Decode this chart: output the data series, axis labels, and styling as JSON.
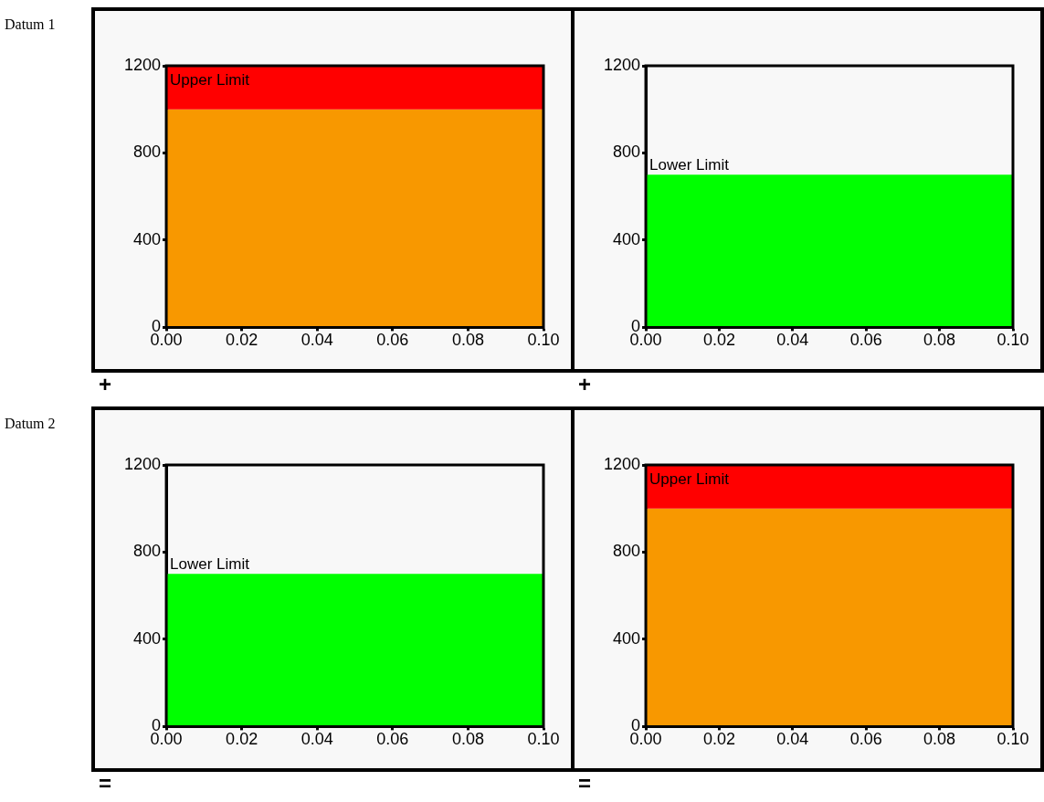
{
  "chart_data": [
    {
      "type": "area",
      "bands": [
        {
          "axis": "y",
          "from": 0,
          "to": 1000,
          "color": "#f89800"
        },
        {
          "axis": "y",
          "from": 1000,
          "to": 1200,
          "label": "Upper Limit",
          "color": "#ff0000"
        }
      ],
      "xlim": [
        0,
        0.1
      ],
      "ylim": [
        0,
        1200
      ],
      "xticks": [
        {
          "value": 0,
          "label": "0.00"
        },
        {
          "value": 0.02,
          "label": "0.02"
        },
        {
          "value": 0.04,
          "label": "0.04"
        },
        {
          "value": 0.06,
          "label": "0.06"
        },
        {
          "value": 0.08,
          "label": "0.08"
        },
        {
          "value": 0.1,
          "label": "0.10"
        }
      ],
      "yticks": [
        0,
        400,
        800,
        1200
      ],
      "annotations": [
        "Datum 1",
        "+"
      ]
    },
    {
      "type": "area",
      "bands": [
        {
          "axis": "y",
          "from": 0,
          "to": 700,
          "color": "#00ff00"
        }
      ],
      "xlim": [
        0,
        0.1
      ],
      "ylim": [
        0,
        1200
      ],
      "xticks": [
        {
          "value": 0,
          "label": "0.00"
        },
        {
          "value": 0.02,
          "label": "0.02"
        },
        {
          "value": 0.04,
          "label": "0.04"
        },
        {
          "value": 0.06,
          "label": "0.06"
        },
        {
          "value": 0.08,
          "label": "0.08"
        },
        {
          "value": 0.1,
          "label": "0.10"
        }
      ],
      "yticks": [
        0,
        400,
        800,
        1200
      ],
      "annotations": [
        {
          "text": "Lower Limit",
          "x": 0,
          "y": 700
        },
        "+"
      ]
    },
    {
      "type": "area",
      "bands": [
        {
          "axis": "y",
          "from": 0,
          "to": 700,
          "color": "#00ff00"
        }
      ],
      "xlim": [
        0,
        0.1
      ],
      "ylim": [
        0,
        1200
      ],
      "xticks": [
        {
          "value": 0,
          "label": "0.00"
        },
        {
          "value": 0.02,
          "label": "0.02"
        },
        {
          "value": 0.04,
          "label": "0.04"
        },
        {
          "value": 0.06,
          "label": "0.06"
        },
        {
          "value": 0.08,
          "label": "0.08"
        },
        {
          "value": 0.1,
          "label": "0.10"
        }
      ],
      "yticks": [
        0,
        400,
        800,
        1200
      ],
      "annotations": [
        {
          "text": "Lower Limit",
          "x": 0,
          "y": 700
        },
        "Datum 2",
        "="
      ]
    },
    {
      "type": "area",
      "bands": [
        {
          "axis": "y",
          "from": 0,
          "to": 1000,
          "color": "#f89800"
        },
        {
          "axis": "y",
          "from": 1000,
          "to": 1200,
          "label": "Upper Limit",
          "color": "#ff0000"
        }
      ],
      "xlim": [
        0,
        0.1
      ],
      "ylim": [
        0,
        1200
      ],
      "xticks": [
        {
          "value": 0,
          "label": "0.00"
        },
        {
          "value": 0.02,
          "label": "0.02"
        },
        {
          "value": 0.04,
          "label": "0.04"
        },
        {
          "value": 0.06,
          "label": "0.06"
        },
        {
          "value": 0.08,
          "label": "0.08"
        },
        {
          "value": 0.1,
          "label": "0.10"
        }
      ],
      "yticks": [
        0,
        400,
        800,
        1200
      ],
      "annotations": [
        "="
      ]
    }
  ]
}
